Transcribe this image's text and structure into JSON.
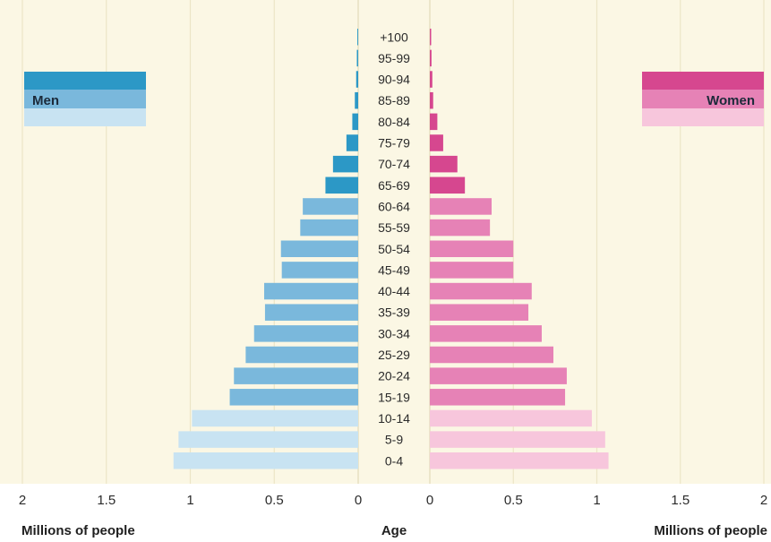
{
  "chart_data": {
    "type": "bar",
    "subtype": "population-pyramid",
    "title": "",
    "ylabel": "Age",
    "xlabel_left": "Millions of people",
    "xlabel_right": "Millions of people",
    "xlim": [
      0,
      2
    ],
    "x_ticks": [
      "2",
      "1.5",
      "1",
      "0.5",
      "0",
      "0",
      "0.5",
      "1",
      "1.5",
      "2"
    ],
    "grid": true,
    "categories": [
      "+100",
      "95-99",
      "90-94",
      "85-89",
      "80-84",
      "75-79",
      "70-74",
      "65-69",
      "60-64",
      "55-59",
      "50-54",
      "45-49",
      "40-44",
      "35-39",
      "30-34",
      "25-29",
      "20-24",
      "15-19",
      "10-14",
      "5-9",
      "0-4"
    ],
    "series": [
      {
        "name": "Men",
        "side": "left",
        "values": [
          0.005,
          0.008,
          0.012,
          0.02,
          0.035,
          0.07,
          0.15,
          0.195,
          0.33,
          0.345,
          0.46,
          0.455,
          0.56,
          0.555,
          0.62,
          0.67,
          0.74,
          0.765,
          0.99,
          1.07,
          1.1
        ]
      },
      {
        "name": "Women",
        "side": "right",
        "values": [
          0.008,
          0.01,
          0.015,
          0.02,
          0.045,
          0.08,
          0.165,
          0.21,
          0.37,
          0.36,
          0.5,
          0.5,
          0.61,
          0.59,
          0.67,
          0.74,
          0.82,
          0.81,
          0.97,
          1.05,
          1.07
        ]
      }
    ],
    "legend": {
      "placement": "top-left and top-right"
    },
    "colors": {
      "background": "#fbf7e4",
      "grid": "#ece5c6",
      "men_elderly": "#2c98c6",
      "men_adult": "#7ab8dc",
      "men_young": "#c8e3f2",
      "women_elderly": "#d6478f",
      "women_adult": "#e682b6",
      "women_young": "#f7c6dc"
    }
  }
}
